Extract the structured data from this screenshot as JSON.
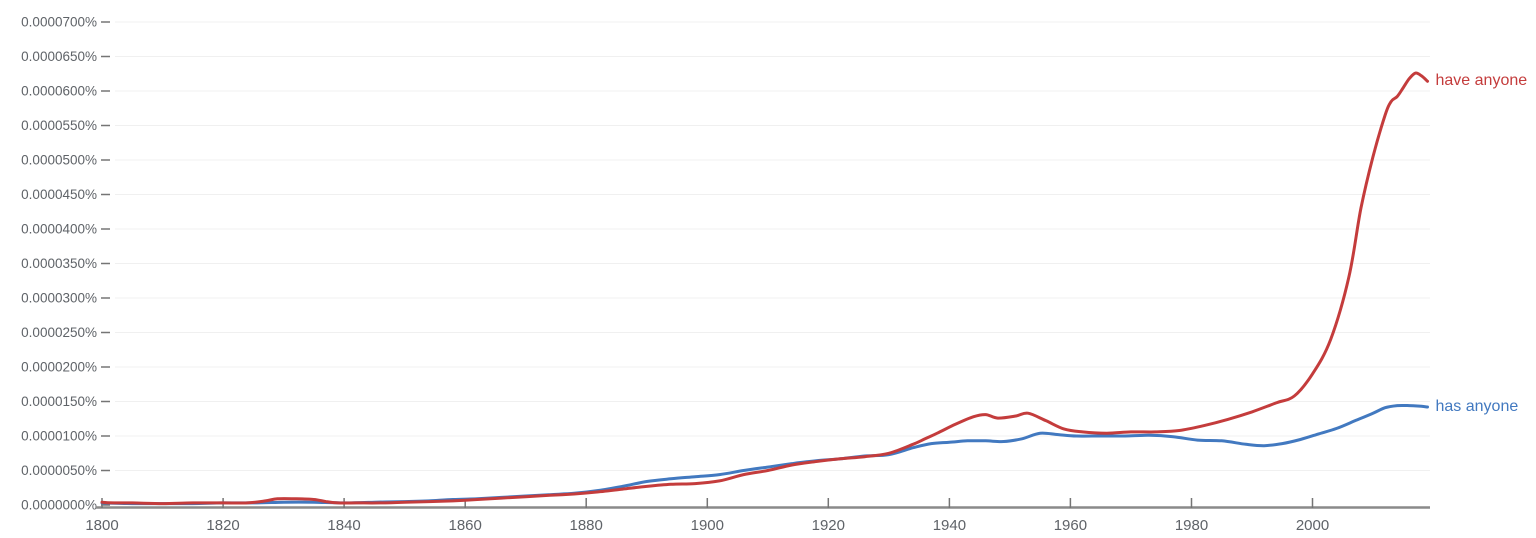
{
  "chart_data": {
    "type": "line",
    "title": "",
    "xlabel": "",
    "ylabel": "",
    "xlim": [
      1800,
      2019
    ],
    "ylim_percent": [
      0,
      7e-05
    ],
    "grid": true,
    "legend_position": "inline-right-of-line-end",
    "y_unit": "1e-7 percent (value 50 = 0.0000050%)",
    "colors": {
      "axis_line": "#8a8a8a",
      "tick_mark": "#757575",
      "tick_label": "#5f6368",
      "gridline": "#f0f0f0",
      "background": "#ffffff"
    },
    "x_axis": {
      "tick_years": [
        1800,
        1820,
        1840,
        1860,
        1880,
        1900,
        1920,
        1940,
        1960,
        1980,
        2000
      ],
      "tick_labels": [
        "1800",
        "1820",
        "1840",
        "1860",
        "1880",
        "1900",
        "1920",
        "1940",
        "1960",
        "1980",
        "2000"
      ]
    },
    "y_axis": {
      "ticks": [
        {
          "value": 0,
          "label": "0.0000000%"
        },
        {
          "value": 50,
          "label": "0.0000050%"
        },
        {
          "value": 100,
          "label": "0.0000100%"
        },
        {
          "value": 150,
          "label": "0.0000150%"
        },
        {
          "value": 200,
          "label": "0.0000200%"
        },
        {
          "value": 250,
          "label": "0.0000250%"
        },
        {
          "value": 300,
          "label": "0.0000300%"
        },
        {
          "value": 350,
          "label": "0.0000350%"
        },
        {
          "value": 400,
          "label": "0.0000400%"
        },
        {
          "value": 450,
          "label": "0.0000450%"
        },
        {
          "value": 500,
          "label": "0.0000500%"
        },
        {
          "value": 550,
          "label": "0.0000550%"
        },
        {
          "value": 600,
          "label": "0.0000600%"
        },
        {
          "value": 650,
          "label": "0.0000650%"
        },
        {
          "value": 700,
          "label": "0.0000700%"
        }
      ]
    },
    "series": [
      {
        "name": "has anyone",
        "key": "has-anyone",
        "color": "#4279c0",
        "points": [
          [
            1800,
            3
          ],
          [
            1805,
            2
          ],
          [
            1810,
            2
          ],
          [
            1815,
            2
          ],
          [
            1820,
            3
          ],
          [
            1825,
            3
          ],
          [
            1830,
            4
          ],
          [
            1835,
            4
          ],
          [
            1840,
            3
          ],
          [
            1845,
            4
          ],
          [
            1850,
            5
          ],
          [
            1854,
            6
          ],
          [
            1858,
            8
          ],
          [
            1862,
            9
          ],
          [
            1866,
            11
          ],
          [
            1870,
            13
          ],
          [
            1874,
            15
          ],
          [
            1878,
            17
          ],
          [
            1882,
            21
          ],
          [
            1886,
            27
          ],
          [
            1890,
            34
          ],
          [
            1894,
            38
          ],
          [
            1898,
            41
          ],
          [
            1902,
            44
          ],
          [
            1906,
            50
          ],
          [
            1910,
            55
          ],
          [
            1914,
            60
          ],
          [
            1918,
            64
          ],
          [
            1922,
            67
          ],
          [
            1926,
            71
          ],
          [
            1930,
            73
          ],
          [
            1934,
            83
          ],
          [
            1937,
            89
          ],
          [
            1940,
            91
          ],
          [
            1943,
            93
          ],
          [
            1946,
            93
          ],
          [
            1949,
            92
          ],
          [
            1952,
            96
          ],
          [
            1955,
            104
          ],
          [
            1958,
            102
          ],
          [
            1961,
            100
          ],
          [
            1965,
            100
          ],
          [
            1969,
            100
          ],
          [
            1973,
            101
          ],
          [
            1977,
            99
          ],
          [
            1981,
            94
          ],
          [
            1985,
            93
          ],
          [
            1989,
            88
          ],
          [
            1992,
            86
          ],
          [
            1995,
            89
          ],
          [
            1998,
            95
          ],
          [
            2001,
            103
          ],
          [
            2004,
            111
          ],
          [
            2007,
            122
          ],
          [
            2010,
            133
          ],
          [
            2012,
            141
          ],
          [
            2014,
            144
          ],
          [
            2016,
            144
          ],
          [
            2018,
            143
          ],
          [
            2019,
            142
          ]
        ]
      },
      {
        "name": "have anyone",
        "key": "have-anyone",
        "color": "#c43c3c",
        "points": [
          [
            1800,
            4
          ],
          [
            1802,
            3
          ],
          [
            1805,
            3
          ],
          [
            1810,
            2
          ],
          [
            1815,
            3
          ],
          [
            1820,
            3
          ],
          [
            1824,
            3
          ],
          [
            1827,
            6
          ],
          [
            1829,
            9
          ],
          [
            1832,
            9
          ],
          [
            1835,
            8
          ],
          [
            1837,
            5
          ],
          [
            1839,
            3
          ],
          [
            1842,
            3
          ],
          [
            1846,
            3
          ],
          [
            1850,
            4
          ],
          [
            1854,
            5
          ],
          [
            1858,
            6
          ],
          [
            1862,
            8
          ],
          [
            1866,
            10
          ],
          [
            1870,
            12
          ],
          [
            1874,
            14
          ],
          [
            1878,
            16
          ],
          [
            1882,
            19
          ],
          [
            1886,
            23
          ],
          [
            1890,
            27
          ],
          [
            1894,
            30
          ],
          [
            1898,
            31
          ],
          [
            1902,
            35
          ],
          [
            1906,
            44
          ],
          [
            1910,
            50
          ],
          [
            1914,
            58
          ],
          [
            1918,
            63
          ],
          [
            1922,
            67
          ],
          [
            1926,
            70
          ],
          [
            1930,
            75
          ],
          [
            1934,
            88
          ],
          [
            1936,
            96
          ],
          [
            1938,
            104
          ],
          [
            1941,
            117
          ],
          [
            1944,
            128
          ],
          [
            1946,
            131
          ],
          [
            1948,
            126
          ],
          [
            1951,
            129
          ],
          [
            1953,
            133
          ],
          [
            1956,
            122
          ],
          [
            1959,
            110
          ],
          [
            1962,
            106
          ],
          [
            1966,
            104
          ],
          [
            1970,
            106
          ],
          [
            1974,
            106
          ],
          [
            1978,
            108
          ],
          [
            1982,
            115
          ],
          [
            1986,
            124
          ],
          [
            1990,
            135
          ],
          [
            1994,
            148
          ],
          [
            1997,
            158
          ],
          [
            2000,
            190
          ],
          [
            2003,
            240
          ],
          [
            2006,
            330
          ],
          [
            2008,
            430
          ],
          [
            2010,
            505
          ],
          [
            2012,
            565
          ],
          [
            2013,
            585
          ],
          [
            2014,
            592
          ],
          [
            2015,
            605
          ],
          [
            2016,
            618
          ],
          [
            2017,
            626
          ],
          [
            2018,
            622
          ],
          [
            2019,
            614
          ]
        ]
      }
    ]
  }
}
